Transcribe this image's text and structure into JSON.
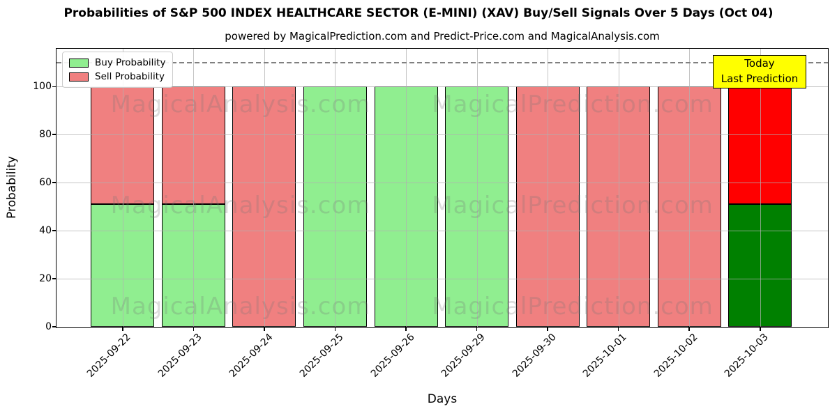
{
  "title": "Probabilities of S&P 500 INDEX HEALTHCARE SECTOR (E-MINI) (XAV) Buy/Sell Signals Over 5 Days (Oct 04)",
  "subtitle": "powered by MagicalPrediction.com and Predict-Price.com and MagicalAnalysis.com",
  "chart_data": {
    "type": "bar",
    "stacked": true,
    "title": "Probabilities of S&P 500 INDEX HEALTHCARE SECTOR (E-MINI) (XAV) Buy/Sell Signals Over 5 Days (Oct 04)",
    "xlabel": "Days",
    "ylabel": "Probability",
    "categories": [
      "2025-09-22",
      "2025-09-23",
      "2025-09-24",
      "2025-09-25",
      "2025-09-26",
      "2025-09-29",
      "2025-09-30",
      "2025-10-01",
      "2025-10-02",
      "2025-10-03"
    ],
    "series": [
      {
        "name": "Buy Probability",
        "color": "#90EE90",
        "values": [
          51,
          51,
          0,
          100,
          100,
          100,
          0,
          0,
          0,
          51
        ]
      },
      {
        "name": "Sell Probability",
        "color": "#F08080",
        "values": [
          49,
          49,
          100,
          0,
          0,
          0,
          100,
          100,
          100,
          49
        ]
      }
    ],
    "today_bar": {
      "index": 9,
      "buy_color": "#008000",
      "sell_color": "#FF0000"
    },
    "yticks": [
      0,
      20,
      40,
      60,
      80,
      100
    ],
    "ylim": [
      0,
      116
    ],
    "dashed_line_y": 110,
    "grid": true,
    "legend_position": "upper left"
  },
  "legend_note": "legend labels bind to chart_data.series names",
  "annotation": {
    "line1": "Today",
    "line2": "Last Prediction",
    "bg_color": "#FFFF00"
  },
  "watermarks": {
    "left_text": "MagicalAnalysis.com",
    "right_text": "MagicalPrediction.com"
  },
  "colors": {
    "buy": "#90EE90",
    "sell": "#F08080",
    "today_buy": "#008000",
    "today_sell": "#FF0000",
    "grid": "#b0b0b0",
    "dashed_line": "#808080",
    "bar_edge": "#000000",
    "annotation_bg": "#FFFF00"
  }
}
